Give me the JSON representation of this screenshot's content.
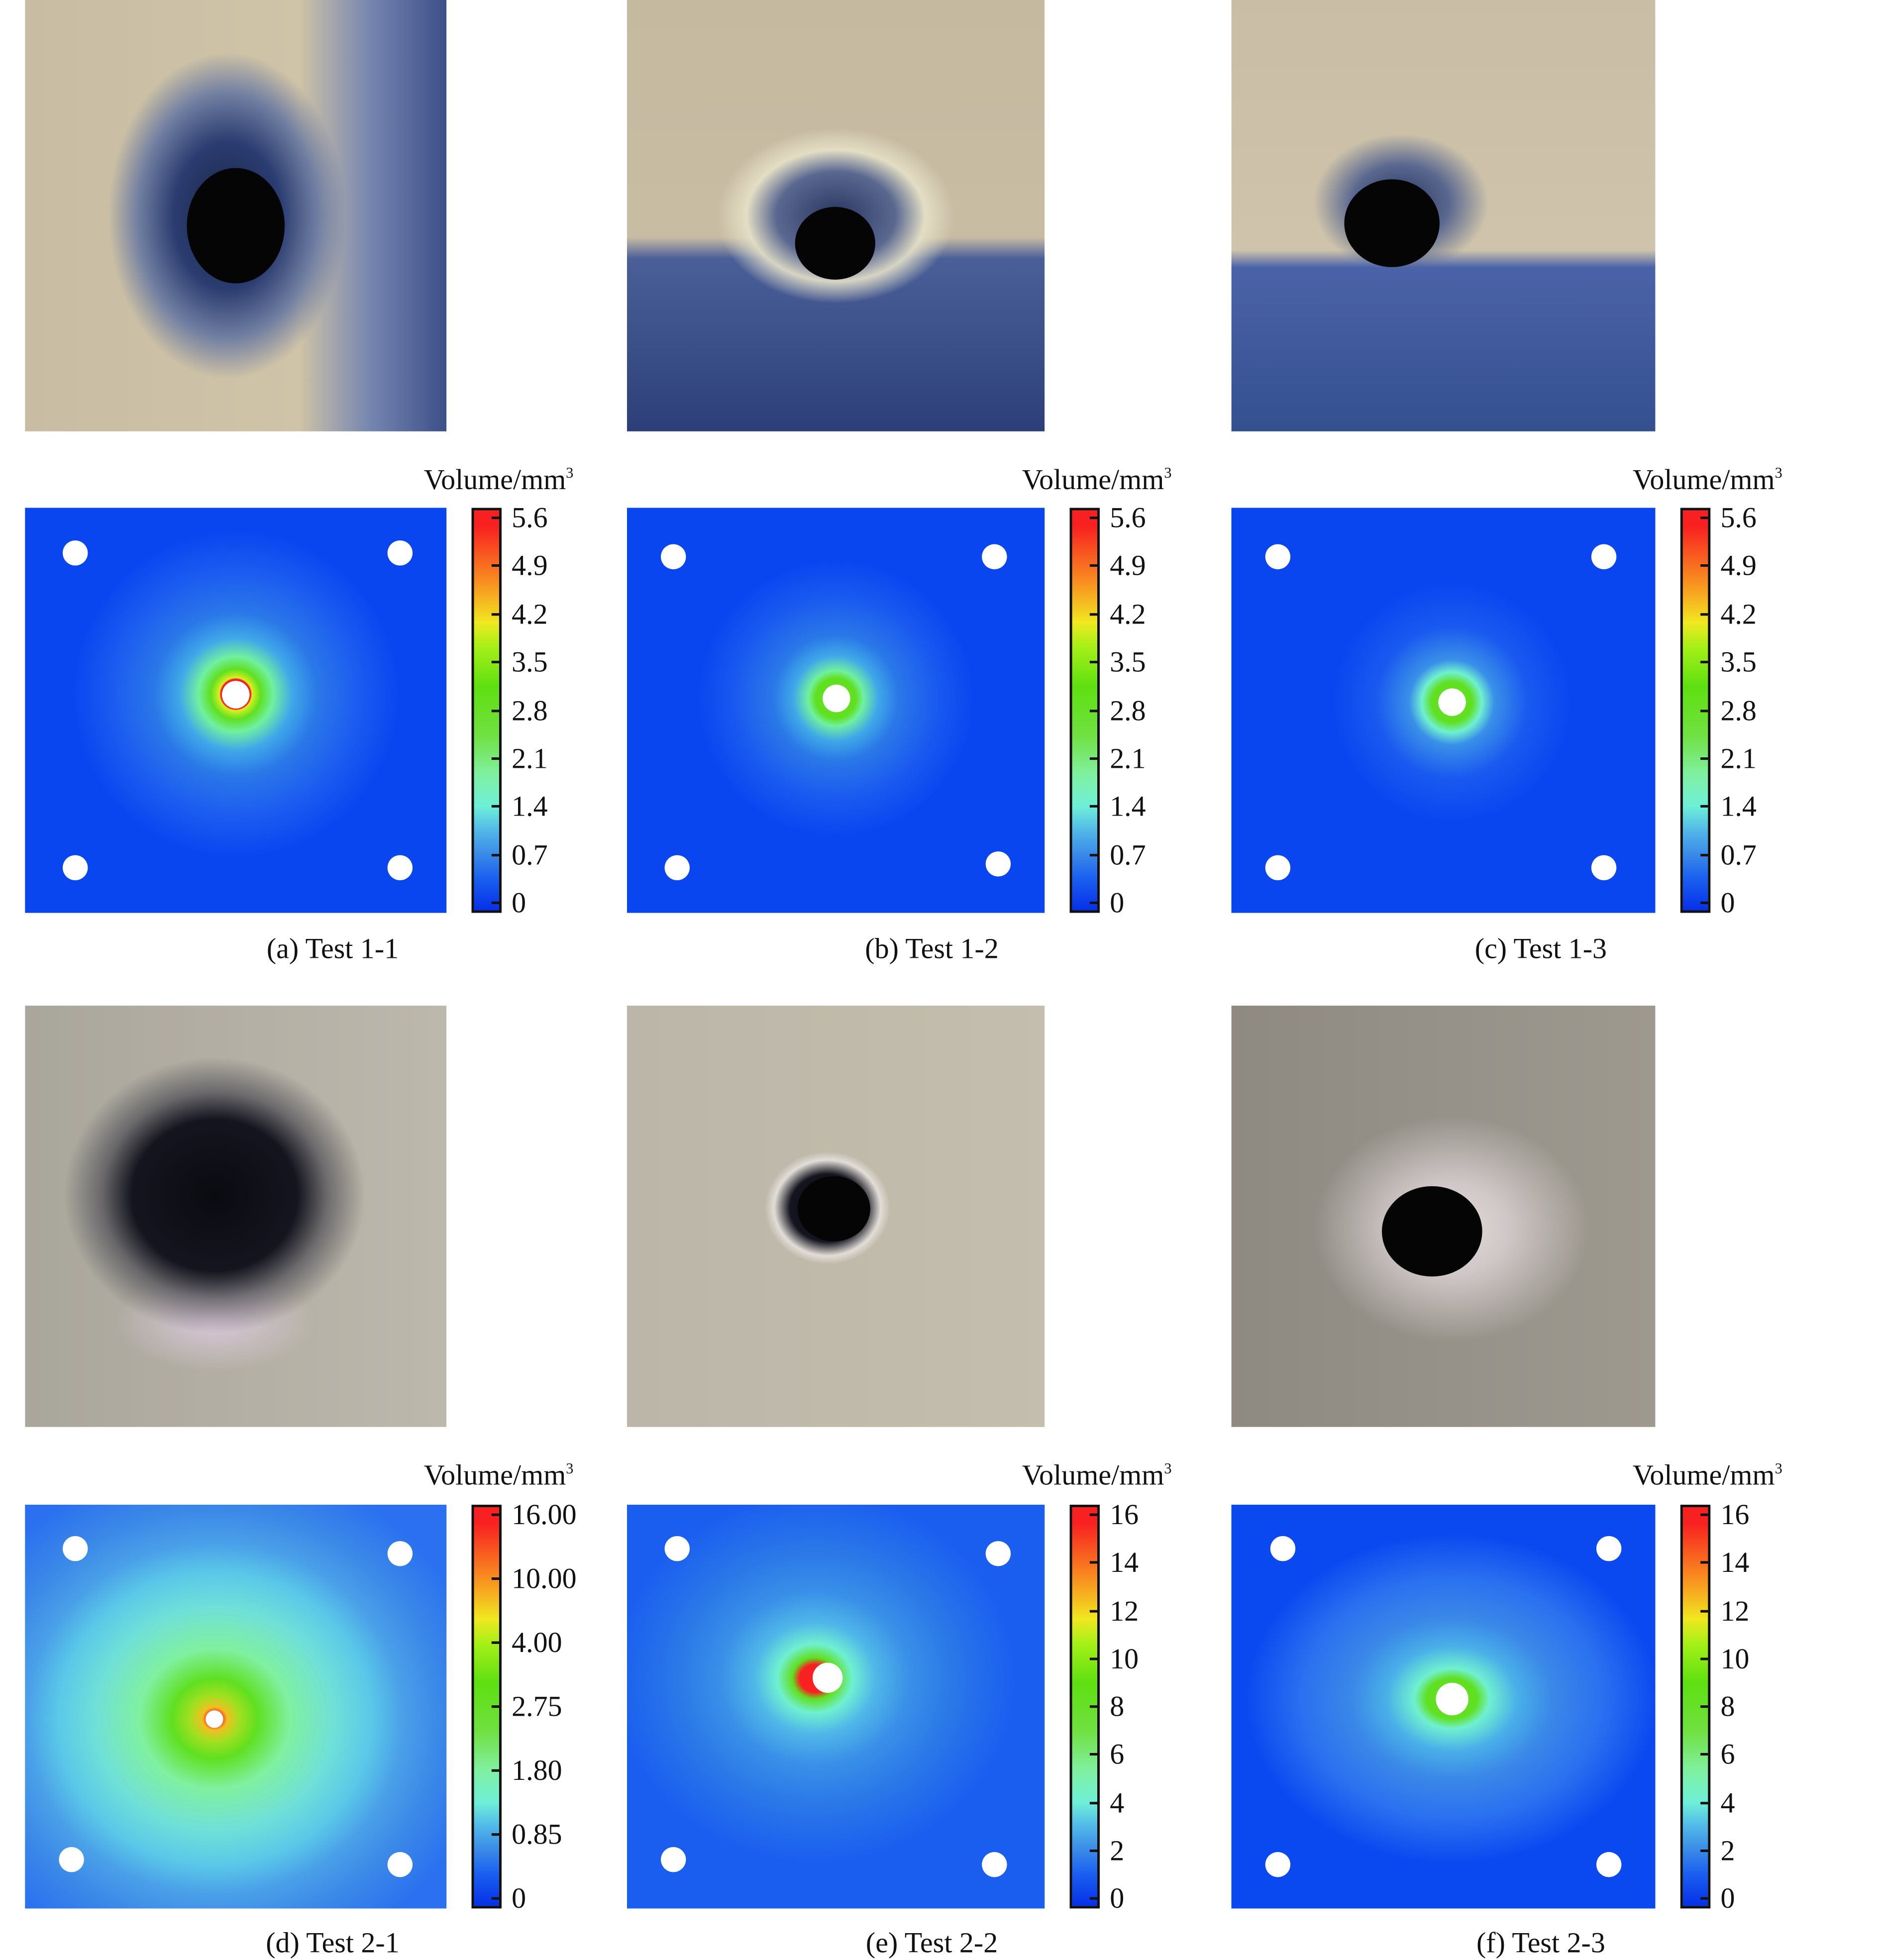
{
  "panels": [
    {
      "caption": "(a) Test 1-1",
      "colorbar": {
        "title": "Volume/mm",
        "title_sup": "3",
        "ticks": [
          "5.6",
          "4.9",
          "4.2",
          "3.5",
          "2.8",
          "2.1",
          "1.4",
          "0.7",
          "0"
        ]
      }
    },
    {
      "caption": "(b) Test 1-2",
      "colorbar": {
        "title": "Volume/mm",
        "title_sup": "3",
        "ticks": [
          "5.6",
          "4.9",
          "4.2",
          "3.5",
          "2.8",
          "2.1",
          "1.4",
          "0.7",
          "0"
        ]
      }
    },
    {
      "caption": "(c) Test 1-3",
      "colorbar": {
        "title": "Volume/mm",
        "title_sup": "3",
        "ticks": [
          "5.6",
          "4.9",
          "4.2",
          "3.5",
          "2.8",
          "2.1",
          "1.4",
          "0.7",
          "0"
        ]
      }
    },
    {
      "caption": "(d) Test 2-1",
      "colorbar": {
        "title": "Volume/mm",
        "title_sup": "3",
        "ticks": [
          "16.00",
          "10.00",
          "4.00",
          "2.75",
          "1.80",
          "0.85",
          "0"
        ]
      }
    },
    {
      "caption": "(e) Test 2-2",
      "colorbar": {
        "title": "Volume/mm",
        "title_sup": "3",
        "ticks": [
          "16",
          "14",
          "12",
          "10",
          "8",
          "6",
          "4",
          "2",
          "0"
        ]
      }
    },
    {
      "caption": "(f) Test 2-3",
      "colorbar": {
        "title": "Volume/mm",
        "title_sup": "3",
        "ticks": [
          "16",
          "14",
          "12",
          "10",
          "8",
          "6",
          "4",
          "2",
          "0"
        ]
      }
    }
  ],
  "colors": {
    "contour_background": "#0a46f0",
    "colormap_low": "#0630e8",
    "colormap_high": "#f82020"
  }
}
